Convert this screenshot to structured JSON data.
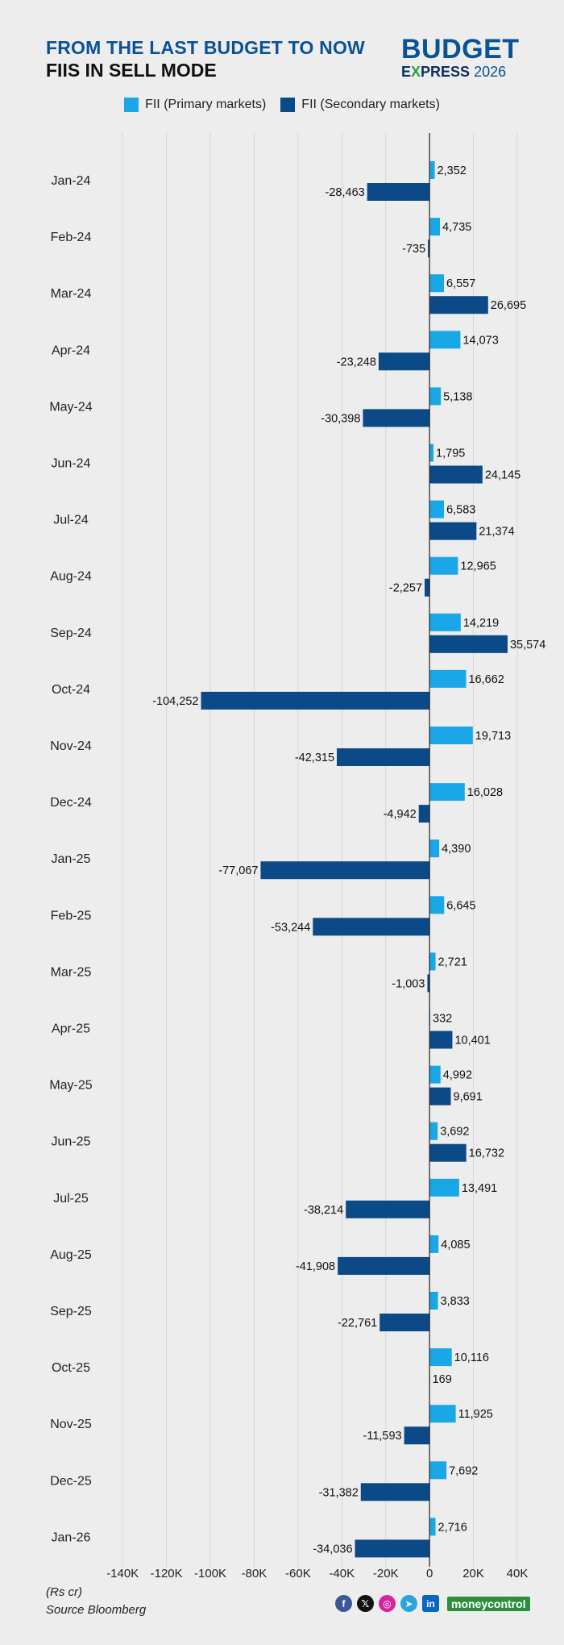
{
  "title_line1": "FROM THE LAST BUDGET TO NOW",
  "title_line2": "FIIS IN SELL MODE",
  "logo": {
    "top": "BUDGET",
    "bottom_e": "E",
    "bottom_x": "X",
    "bottom_rest": "PRESS",
    "year": "2026"
  },
  "legend": {
    "primary": {
      "label": "FII (Primary markets)",
      "color": "#1aa7e8"
    },
    "secondary": {
      "label": "FII (Secondary markets)",
      "color": "#0b4a86"
    }
  },
  "footer": {
    "unit": "(Rs cr)",
    "source": "Source Bloomberg",
    "brand": "moneycontrol"
  },
  "social_icons": [
    "facebook-icon",
    "x-icon",
    "instagram-icon",
    "telegram-icon",
    "linkedin-icon"
  ],
  "chart_data": {
    "type": "bar",
    "orientation": "horizontal",
    "categories": [
      "Jan-24",
      "Feb-24",
      "Mar-24",
      "Apr-24",
      "May-24",
      "Jun-24",
      "Jul-24",
      "Aug-24",
      "Sep-24",
      "Oct-24",
      "Nov-24",
      "Dec-24",
      "Jan-25",
      "Feb-25",
      "Mar-25",
      "Apr-25",
      "May-25",
      "Jun-25",
      "Jul-25",
      "Aug-25",
      "Sep-25",
      "Oct-25",
      "Nov-25",
      "Dec-25",
      "Jan-26"
    ],
    "series": [
      {
        "name": "FII (Primary markets)",
        "color": "#1aa7e8",
        "values": [
          2352,
          4735,
          6557,
          14073,
          5138,
          1795,
          6583,
          12965,
          14219,
          16662,
          19713,
          16028,
          4390,
          6645,
          2721,
          332,
          4992,
          3692,
          13491,
          4085,
          3833,
          10116,
          11925,
          7692,
          2716
        ],
        "labels": [
          "2,352",
          "4,735",
          "6,557",
          "14,073",
          "5,138",
          "1,795",
          "6,583",
          "12,965",
          "14,219",
          "16,662",
          "19,713",
          "16,028",
          "4,390",
          "6,645",
          "2,721",
          "332",
          "4,992",
          "3,692",
          "13,491",
          "4,085",
          "3,833",
          "10,116",
          "11,925",
          "7,692",
          "2,716"
        ]
      },
      {
        "name": "FII (Secondary markets)",
        "color": "#0b4a86",
        "values": [
          -28463,
          -735,
          26695,
          -23248,
          -30398,
          24145,
          21374,
          -2257,
          35574,
          -104252,
          -42315,
          -4942,
          -77067,
          -53244,
          -1003,
          10401,
          9691,
          16732,
          -38214,
          -41908,
          -22761,
          169,
          -11593,
          -31382,
          -34036
        ],
        "labels": [
          "-28,463",
          "-735",
          "26,695",
          "-23,248",
          "-30,398",
          "24,145",
          "21,374",
          "-2,257",
          "35,574",
          "-104,252",
          "-42,315",
          "-4,942",
          "-77,067",
          "-53,244",
          "-1,003",
          "10,401",
          "9,691",
          "16,732",
          "-38,214",
          "-41,908",
          "-22,761",
          "169",
          "-11,593",
          "-31,382",
          "-34,036"
        ]
      }
    ],
    "xlim": [
      -150000,
      40000
    ],
    "xticks": [
      -140000,
      -120000,
      -100000,
      -80000,
      -60000,
      -40000,
      -20000,
      0,
      20000,
      40000
    ],
    "xtick_labels": [
      "-140K",
      "-120K",
      "-100K",
      "-80K",
      "-60K",
      "-40K",
      "-20K",
      "0",
      "20K",
      "40K"
    ],
    "grid": true,
    "legend_position": "top"
  }
}
